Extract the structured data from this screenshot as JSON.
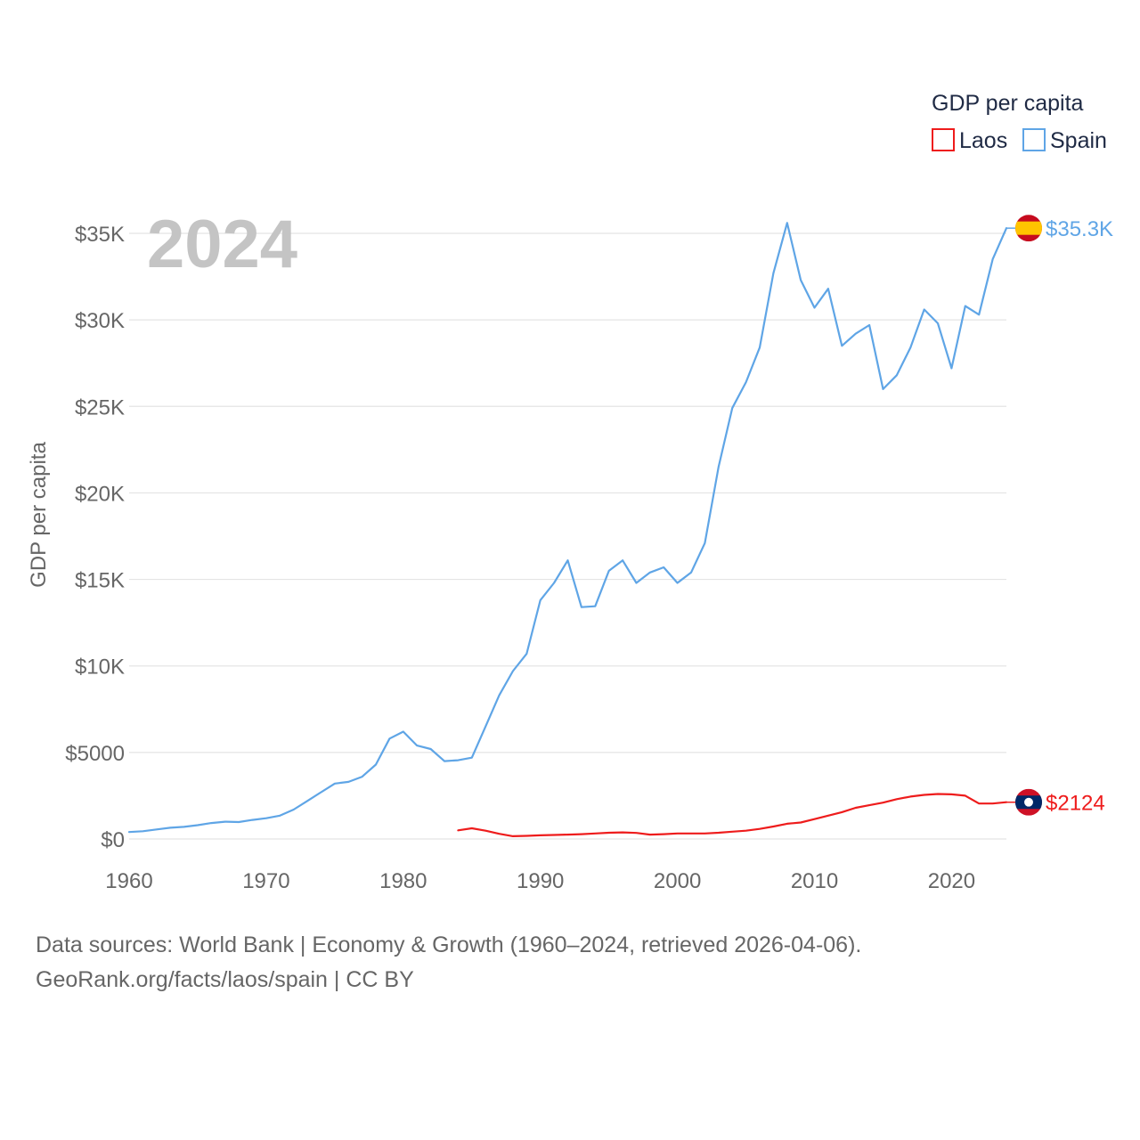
{
  "chart_data": {
    "type": "line",
    "title": "GDP per capita",
    "year_label": "2024",
    "ylabel": "GDP per capita",
    "xlabel": "",
    "xlim": [
      1960,
      2024
    ],
    "ylim": [
      0,
      35000
    ],
    "x_ticks": [
      1960,
      1970,
      1980,
      1990,
      2000,
      2010,
      2020
    ],
    "x_tick_labels": [
      "1960",
      "1970",
      "1980",
      "1990",
      "2000",
      "2010",
      "2020"
    ],
    "y_ticks": [
      0,
      5000,
      10000,
      15000,
      20000,
      25000,
      30000,
      35000
    ],
    "y_tick_labels": [
      "$0",
      "$5000",
      "$10K",
      "$15K",
      "$20K",
      "$25K",
      "$30K",
      "$35K"
    ],
    "grid": true,
    "legend": {
      "title": "GDP per capita",
      "position": "top-right",
      "entries": [
        "Laos",
        "Spain"
      ]
    },
    "series": [
      {
        "name": "Spain",
        "color": "#5fa5e6",
        "end_label": "$35.3K",
        "flag": "spain-flag-icon",
        "x": [
          1960,
          1961,
          1962,
          1963,
          1964,
          1965,
          1966,
          1967,
          1968,
          1969,
          1970,
          1971,
          1972,
          1973,
          1974,
          1975,
          1976,
          1977,
          1978,
          1979,
          1980,
          1981,
          1982,
          1983,
          1984,
          1985,
          1986,
          1987,
          1988,
          1989,
          1990,
          1991,
          1992,
          1993,
          1994,
          1995,
          1996,
          1997,
          1998,
          1999,
          2000,
          2001,
          2002,
          2003,
          2004,
          2005,
          2006,
          2007,
          2008,
          2009,
          2010,
          2011,
          2012,
          2013,
          2014,
          2015,
          2016,
          2017,
          2018,
          2019,
          2020,
          2021,
          2022,
          2023,
          2024
        ],
        "values": [
          400,
          450,
          550,
          650,
          700,
          800,
          920,
          1000,
          980,
          1100,
          1200,
          1350,
          1700,
          2200,
          2700,
          3200,
          3300,
          3600,
          4300,
          5800,
          6200,
          5400,
          5200,
          4500,
          4550,
          4700,
          6500,
          8300,
          9700,
          10700,
          13800,
          14800,
          16100,
          13400,
          13450,
          15500,
          16100,
          14800,
          15400,
          15700,
          14800,
          15400,
          17100,
          21500,
          24900,
          26400,
          28400,
          32700,
          35600,
          32300,
          30700,
          31800,
          28500,
          29200,
          29700,
          26000,
          26800,
          28400,
          30600,
          29800,
          27200,
          30800,
          30300,
          33500,
          35300
        ]
      },
      {
        "name": "Laos",
        "color": "#ee1c1c",
        "end_label": "$2124",
        "flag": "laos-flag-icon",
        "x": [
          1984,
          1985,
          1986,
          1987,
          1988,
          1989,
          1990,
          1991,
          1992,
          1993,
          1994,
          1995,
          1996,
          1997,
          1998,
          1999,
          2000,
          2001,
          2002,
          2003,
          2004,
          2005,
          2006,
          2007,
          2008,
          2009,
          2010,
          2011,
          2012,
          2013,
          2014,
          2015,
          2016,
          2017,
          2018,
          2019,
          2020,
          2021,
          2022,
          2023,
          2024
        ],
        "values": [
          500,
          620,
          480,
          300,
          160,
          180,
          210,
          230,
          250,
          280,
          320,
          360,
          380,
          350,
          250,
          280,
          320,
          320,
          320,
          360,
          420,
          480,
          580,
          720,
          880,
          950,
          1150,
          1350,
          1550,
          1800,
          1950,
          2100,
          2300,
          2450,
          2550,
          2600,
          2580,
          2500,
          2050,
          2050,
          2124
        ]
      }
    ]
  },
  "sources": {
    "line1": "Data sources: World Bank | Economy & Growth (1960–2024, retrieved 2026-04-06).",
    "line2": "GeoRank.org/facts/laos/spain | CC BY"
  }
}
